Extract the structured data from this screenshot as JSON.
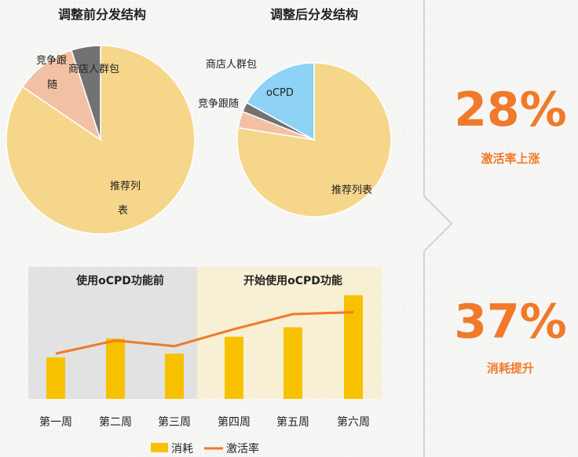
{
  "chart_data": [
    {
      "type": "pie",
      "title": "调整前分发结构",
      "slices": [
        {
          "label": "推荐列表",
          "value": 84.5,
          "color": "#f6d68a"
        },
        {
          "label": "竞争跟随",
          "value": 10.5,
          "color": "#f2c1a3"
        },
        {
          "label": "商店人群包",
          "value": 5,
          "color": "#727272"
        }
      ]
    },
    {
      "type": "pie",
      "title": "调整后分发结构",
      "slices": [
        {
          "label": "推荐列表",
          "value": 77.5,
          "color": "#f6d68a"
        },
        {
          "label": "竞争跟随",
          "value": 3.5,
          "color": "#f2c1a3"
        },
        {
          "label": "商店人群包",
          "value": 2,
          "color": "#727272"
        },
        {
          "label": "oCPD",
          "value": 17,
          "color": "#8ed2f5"
        }
      ]
    },
    {
      "type": "bar",
      "categories": [
        "第一周",
        "第二周",
        "第三周",
        "第四周",
        "第五周",
        "第六周"
      ],
      "series": [
        {
          "name": "消耗",
          "type": "bar",
          "color": "#f8c100",
          "values": [
            22,
            32,
            24,
            33,
            38,
            55
          ]
        },
        {
          "name": "激活率",
          "type": "line",
          "color": "#f07a2a",
          "values": [
            24,
            31,
            28,
            37,
            45,
            46
          ]
        }
      ],
      "ylim": [
        0,
        70
      ],
      "regions": [
        {
          "label": "使用oCPD功能前",
          "from": 0,
          "to": 2,
          "color": "#e2e2e2"
        },
        {
          "label": "开始使用oCPD功能",
          "from": 3,
          "to": 5,
          "color": "#f8f0d4"
        }
      ],
      "legend": "bottom"
    }
  ],
  "stats": [
    {
      "value": "28%",
      "caption": "激活率上涨"
    },
    {
      "value": "37%",
      "caption": "消耗提升"
    }
  ]
}
